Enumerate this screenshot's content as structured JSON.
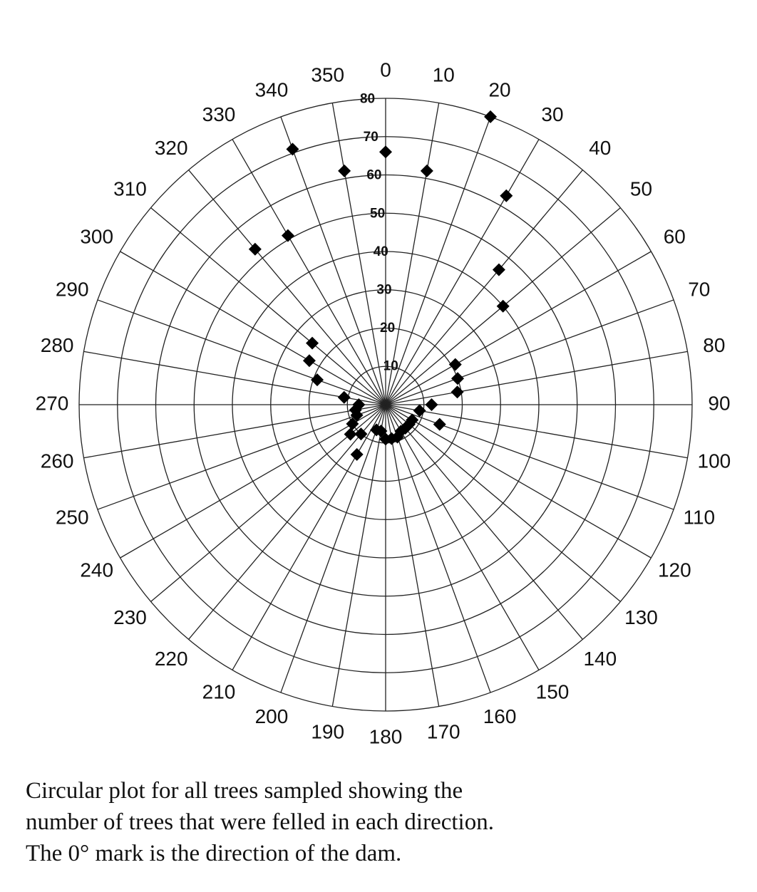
{
  "chart_data": {
    "type": "polar-scatter",
    "theta": [
      0,
      10,
      20,
      30,
      40,
      50,
      60,
      70,
      80,
      90,
      100,
      110,
      120,
      130,
      140,
      150,
      160,
      170,
      180,
      190,
      200,
      210,
      220,
      230,
      240,
      250,
      260,
      270,
      280,
      290,
      300,
      310,
      320,
      330,
      340,
      350
    ],
    "r": [
      66,
      62,
      80,
      63,
      46,
      40,
      21,
      20,
      19,
      12,
      9,
      15,
      8,
      8,
      8,
      8,
      9,
      9,
      9,
      7,
      7,
      15,
      10,
      12,
      10,
      8,
      8,
      7,
      11,
      19,
      23,
      25,
      53,
      51,
      71,
      62
    ],
    "color": "#000000",
    "rlim": [
      0,
      80
    ],
    "rticks": [
      10,
      20,
      30,
      40,
      50,
      60,
      70,
      80
    ],
    "thetaticks": [
      0,
      10,
      20,
      30,
      40,
      50,
      60,
      70,
      80,
      90,
      100,
      110,
      120,
      130,
      140,
      150,
      160,
      170,
      180,
      190,
      200,
      210,
      220,
      230,
      240,
      250,
      260,
      270,
      280,
      290,
      300,
      310,
      320,
      330,
      340,
      350
    ],
    "grid": true,
    "caption": [
      "Circular plot for all trees sampled showing the",
      "number of trees that were felled in each direction.",
      "The 0° mark is the direction of the dam."
    ]
  }
}
